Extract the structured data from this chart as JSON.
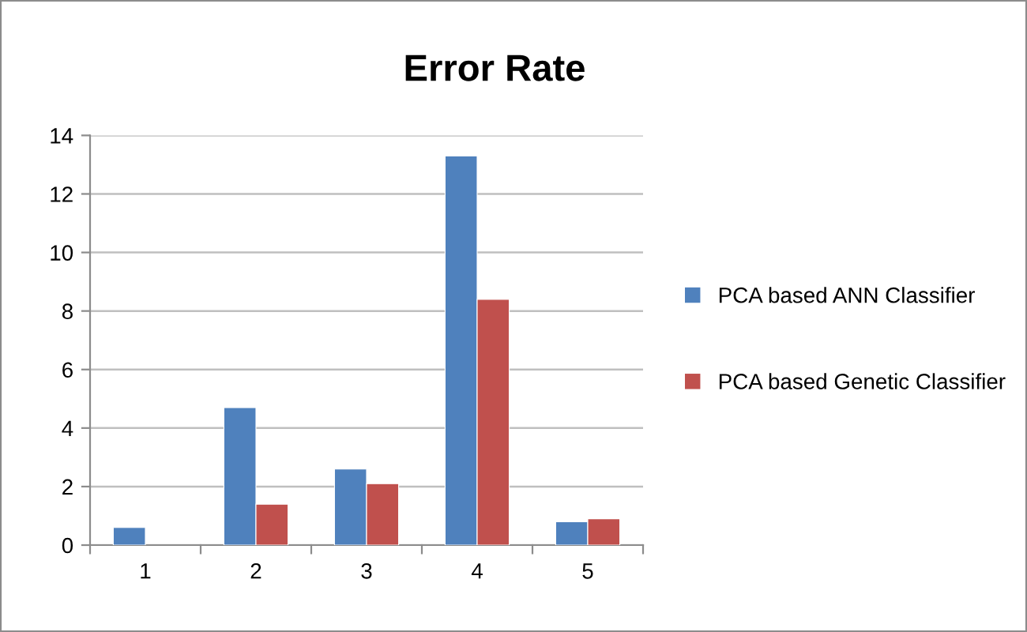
{
  "chart_data": {
    "type": "bar",
    "title": "Error Rate",
    "categories": [
      "1",
      "2",
      "3",
      "4",
      "5"
    ],
    "series": [
      {
        "name": "PCA based ANN Classifier",
        "color": "#4f81bd",
        "values": [
          0.6,
          4.7,
          2.6,
          13.3,
          0.8
        ]
      },
      {
        "name": "PCA based Genetic Classifier",
        "color": "#c0504d",
        "values": [
          null,
          1.4,
          2.1,
          8.4,
          0.9
        ]
      }
    ],
    "ylim": [
      0,
      14
    ],
    "yticks": [
      0,
      2,
      4,
      6,
      8,
      10,
      12,
      14
    ],
    "grid": "y",
    "legend": "right"
  }
}
